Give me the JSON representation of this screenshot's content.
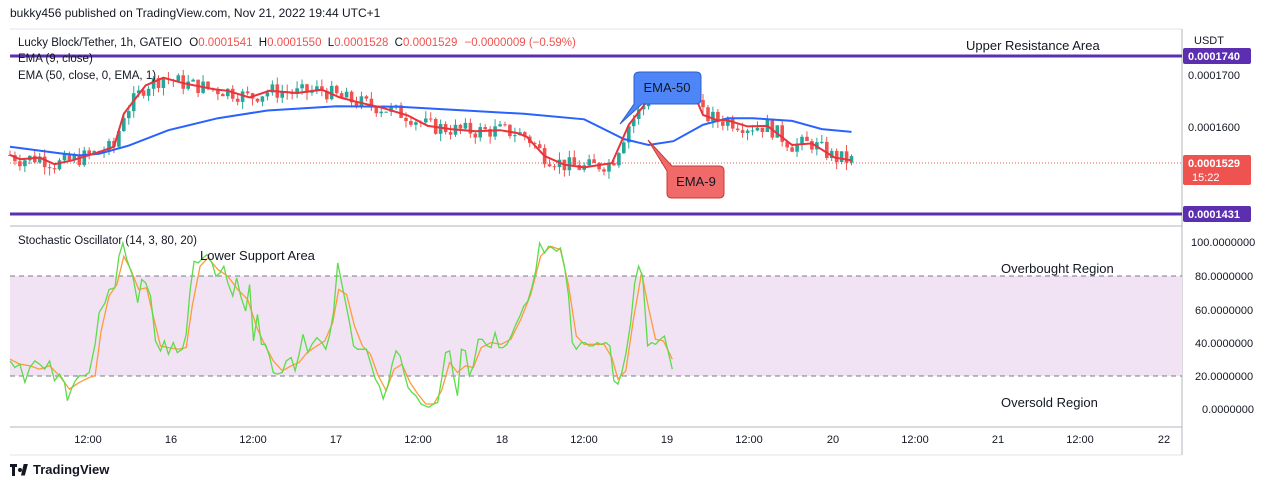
{
  "header": {
    "published": "bukky456 published on TradingView.com, Nov 21, 2022 19:44 UTC+1"
  },
  "footer": {
    "brand": "TradingView",
    "logo_icon": "tradingview-logo-icon"
  },
  "legend": {
    "symbol": "Lucky Block/Tether, 1h, GATEIO",
    "o_label": "O",
    "o": "0.0001541",
    "h_label": "H",
    "h": "0.0001550",
    "l_label": "L",
    "l": "0.0001528",
    "c_label": "C",
    "c": "0.0001529",
    "change": "−0.0000009 (−0.59%)",
    "ema9": "EMA (9, close)",
    "ema50": "EMA (50, close, 0, EMA, 1)"
  },
  "price_axis": {
    "currency": "USDT",
    "ticks": [
      "0.0001700",
      "0.0001600"
    ],
    "resistance_badge": "0.0001740",
    "support_badge": "0.0001431",
    "last_price": "0.0001529",
    "countdown": "15:22"
  },
  "annotations": {
    "upper": "Upper Resistance Area",
    "lower": "Lower Support Area",
    "overbought": "Overbought Region",
    "oversold": "Oversold Region",
    "ema50_callout": "EMA-50",
    "ema9_callout": "EMA-9"
  },
  "oscillator": {
    "title": "Stochastic Oscillator (14, 3, 80, 20)",
    "ticks": [
      "100.0000000",
      "80.0000000",
      "60.0000000",
      "40.0000000",
      "20.0000000",
      "0.0000000"
    ]
  },
  "time_axis": [
    "12:00",
    "16",
    "12:00",
    "17",
    "12:00",
    "18",
    "12:00",
    "19",
    "12:00",
    "20",
    "12:00",
    "21",
    "12:00",
    "22"
  ],
  "colors": {
    "up": "#26a69a",
    "down": "#ef5350",
    "ema9": "#e8323c",
    "ema50": "#2962ff",
    "level": "#5b2fb0",
    "k": "#5cdc4a",
    "d": "#ff9a3c",
    "band": "#f1e3f3"
  },
  "chart_data": {
    "type": "candlestick",
    "symbol": "LBLOCK/USDT",
    "timeframe": "1h",
    "price_range": [
      0.0001415,
      0.0001775
    ],
    "levels": {
      "resistance": 0.000174,
      "support": 0.0001431,
      "last": 0.0001529
    },
    "time_range": [
      "Nov 15 08:00",
      "Nov 21 19:00"
    ],
    "ema9_path": [
      [
        0,
        0.0001545
      ],
      [
        10,
        0.0001537
      ],
      [
        30,
        0.000154
      ],
      [
        45,
        0.0001528
      ],
      [
        63,
        0.0001535
      ],
      [
        90,
        0.000155
      ],
      [
        105,
        0.000156
      ],
      [
        115,
        0.000162
      ],
      [
        137,
        0.0001672
      ],
      [
        155,
        0.0001686
      ],
      [
        175,
        0.0001676
      ],
      [
        206,
        0.0001665
      ],
      [
        220,
        0.0001662
      ],
      [
        242,
        0.000165
      ],
      [
        262,
        0.0001662
      ],
      [
        290,
        0.0001658
      ],
      [
        315,
        0.0001664
      ],
      [
        333,
        0.000165
      ],
      [
        350,
        0.0001642
      ],
      [
        378,
        0.000163
      ],
      [
        402,
        0.0001617
      ],
      [
        422,
        0.0001598
      ],
      [
        445,
        0.0001592
      ],
      [
        470,
        0.0001588
      ],
      [
        495,
        0.000159
      ],
      [
        512,
        0.0001585
      ],
      [
        522,
        0.0001578
      ],
      [
        540,
        0.0001543
      ],
      [
        560,
        0.0001527
      ],
      [
        580,
        0.0001522
      ],
      [
        608,
        0.000153
      ],
      [
        625,
        0.00016
      ],
      [
        650,
        0.0001658
      ],
      [
        672,
        0.000168
      ],
      [
        680,
        0.0001678
      ],
      [
        690,
        0.000166
      ],
      [
        700,
        0.0001618
      ],
      [
        715,
        0.0001608
      ],
      [
        725,
        0.0001608
      ],
      [
        745,
        0.0001597
      ],
      [
        765,
        0.0001598
      ],
      [
        790,
        0.0001563
      ],
      [
        810,
        0.0001566
      ],
      [
        833,
        0.000154
      ],
      [
        850,
        0.0001535
      ]
    ],
    "ema50_path": [
      [
        0,
        0.000156
      ],
      [
        50,
        0.0001548
      ],
      [
        70,
        0.0001544
      ],
      [
        90,
        0.0001547
      ],
      [
        120,
        0.0001562
      ],
      [
        160,
        0.000159
      ],
      [
        210,
        0.0001612
      ],
      [
        260,
        0.0001626
      ],
      [
        330,
        0.0001634
      ],
      [
        393,
        0.0001633
      ],
      [
        460,
        0.0001626
      ],
      [
        519,
        0.000162
      ],
      [
        580,
        0.000161
      ],
      [
        620,
        0.0001574
      ],
      [
        645,
        0.0001563
      ],
      [
        670,
        0.000157
      ],
      [
        700,
        0.00016
      ],
      [
        725,
        0.0001612
      ],
      [
        750,
        0.0001612
      ],
      [
        790,
        0.0001607
      ],
      [
        820,
        0.0001592
      ],
      [
        850,
        0.0001587
      ]
    ],
    "stoch_k": [
      [
        0,
        29
      ],
      [
        5,
        25
      ],
      [
        10,
        27
      ],
      [
        15,
        16
      ],
      [
        20,
        25
      ],
      [
        25,
        29
      ],
      [
        30,
        27
      ],
      [
        35,
        24
      ],
      [
        40,
        29
      ],
      [
        45,
        17
      ],
      [
        50,
        21
      ],
      [
        55,
        16
      ],
      [
        58,
        5
      ],
      [
        62,
        12
      ],
      [
        66,
        17
      ],
      [
        70,
        20
      ],
      [
        75,
        20
      ],
      [
        80,
        22
      ],
      [
        86,
        39
      ],
      [
        90,
        58
      ],
      [
        96,
        64
      ],
      [
        100,
        72
      ],
      [
        106,
        73
      ],
      [
        110,
        92
      ],
      [
        114,
        100
      ],
      [
        118,
        90
      ],
      [
        124,
        80
      ],
      [
        129,
        64
      ],
      [
        133,
        78
      ],
      [
        137,
        76
      ],
      [
        142,
        68
      ],
      [
        147,
        41
      ],
      [
        152,
        35
      ],
      [
        156,
        41
      ],
      [
        160,
        33
      ],
      [
        165,
        40
      ],
      [
        169,
        34
      ],
      [
        174,
        36
      ],
      [
        178,
        45
      ],
      [
        182,
        72
      ],
      [
        186,
        89
      ],
      [
        190,
        88
      ],
      [
        195,
        91
      ],
      [
        199,
        93
      ],
      [
        204,
        88
      ],
      [
        208,
        80
      ],
      [
        212,
        82
      ],
      [
        216,
        86
      ],
      [
        220,
        76
      ],
      [
        225,
        68
      ],
      [
        229,
        79
      ],
      [
        233,
        68
      ],
      [
        238,
        59
      ],
      [
        242,
        75
      ],
      [
        246,
        41
      ],
      [
        250,
        57
      ],
      [
        254,
        39
      ],
      [
        258,
        39
      ],
      [
        262,
        32
      ],
      [
        266,
        22
      ],
      [
        270,
        21
      ],
      [
        275,
        22
      ],
      [
        279,
        29
      ],
      [
        284,
        31
      ],
      [
        288,
        23
      ],
      [
        292,
        33
      ],
      [
        296,
        45
      ],
      [
        301,
        34
      ],
      [
        305,
        39
      ],
      [
        310,
        43
      ],
      [
        315,
        40
      ],
      [
        319,
        36
      ],
      [
        323,
        45
      ],
      [
        327,
        59
      ],
      [
        331,
        88
      ],
      [
        335,
        76
      ],
      [
        339,
        64
      ],
      [
        343,
        52
      ],
      [
        347,
        38
      ],
      [
        351,
        36
      ],
      [
        355,
        36
      ],
      [
        360,
        36
      ],
      [
        364,
        28
      ],
      [
        369,
        18
      ],
      [
        373,
        14
      ],
      [
        377,
        6
      ],
      [
        382,
        15
      ],
      [
        386,
        27
      ],
      [
        390,
        35
      ],
      [
        394,
        32
      ],
      [
        398,
        22
      ],
      [
        402,
        13
      ],
      [
        406,
        10
      ],
      [
        410,
        8
      ],
      [
        415,
        3
      ],
      [
        419,
        2
      ],
      [
        423,
        1
      ],
      [
        428,
        3
      ],
      [
        432,
        4
      ],
      [
        436,
        18
      ],
      [
        440,
        34
      ],
      [
        444,
        35
      ],
      [
        448,
        20
      ],
      [
        452,
        8
      ],
      [
        456,
        36
      ],
      [
        460,
        35
      ],
      [
        464,
        20
      ],
      [
        468,
        26
      ],
      [
        473,
        42
      ],
      [
        477,
        42
      ],
      [
        482,
        38
      ],
      [
        486,
        37
      ],
      [
        490,
        46
      ],
      [
        494,
        37
      ],
      [
        498,
        37
      ],
      [
        502,
        39
      ],
      [
        507,
        45
      ],
      [
        511,
        51
      ],
      [
        515,
        56
      ],
      [
        519,
        62
      ],
      [
        523,
        65
      ],
      [
        527,
        73
      ],
      [
        531,
        83
      ],
      [
        535,
        100
      ],
      [
        540,
        94
      ],
      [
        544,
        98
      ],
      [
        548,
        97
      ],
      [
        552,
        95
      ],
      [
        556,
        97
      ],
      [
        560,
        86
      ],
      [
        564,
        69
      ],
      [
        568,
        40
      ],
      [
        572,
        36
      ],
      [
        577,
        40
      ],
      [
        581,
        40
      ],
      [
        585,
        38
      ],
      [
        589,
        38
      ],
      [
        593,
        40
      ],
      [
        597,
        39
      ],
      [
        602,
        40
      ],
      [
        606,
        38
      ],
      [
        610,
        17
      ],
      [
        614,
        15
      ],
      [
        618,
        22
      ],
      [
        622,
        33
      ],
      [
        627,
        52
      ],
      [
        631,
        76
      ],
      [
        635,
        86
      ],
      [
        639,
        80
      ],
      [
        644,
        38
      ],
      [
        648,
        40
      ],
      [
        652,
        39
      ],
      [
        657,
        42
      ],
      [
        661,
        44
      ],
      [
        665,
        34
      ],
      [
        669,
        24
      ]
    ],
    "stoch_d": [
      [
        0,
        30
      ],
      [
        10,
        27
      ],
      [
        20,
        26
      ],
      [
        30,
        24
      ],
      [
        40,
        26
      ],
      [
        50,
        20
      ],
      [
        60,
        12
      ],
      [
        70,
        16
      ],
      [
        80,
        19
      ],
      [
        86,
        20
      ],
      [
        92,
        47
      ],
      [
        100,
        68
      ],
      [
        108,
        75
      ],
      [
        115,
        92
      ],
      [
        122,
        84
      ],
      [
        130,
        72
      ],
      [
        138,
        73
      ],
      [
        145,
        55
      ],
      [
        152,
        38
      ],
      [
        160,
        37
      ],
      [
        170,
        36
      ],
      [
        178,
        37
      ],
      [
        184,
        62
      ],
      [
        192,
        86
      ],
      [
        200,
        91
      ],
      [
        210,
        84
      ],
      [
        220,
        80
      ],
      [
        230,
        72
      ],
      [
        240,
        66
      ],
      [
        250,
        48
      ],
      [
        258,
        38
      ],
      [
        266,
        29
      ],
      [
        275,
        23
      ],
      [
        284,
        26
      ],
      [
        292,
        28
      ],
      [
        300,
        34
      ],
      [
        310,
        38
      ],
      [
        318,
        41
      ],
      [
        326,
        52
      ],
      [
        332,
        72
      ],
      [
        340,
        69
      ],
      [
        348,
        50
      ],
      [
        356,
        38
      ],
      [
        364,
        33
      ],
      [
        372,
        20
      ],
      [
        380,
        11
      ],
      [
        388,
        24
      ],
      [
        396,
        27
      ],
      [
        404,
        16
      ],
      [
        412,
        9
      ],
      [
        420,
        3
      ],
      [
        428,
        3
      ],
      [
        436,
        11
      ],
      [
        444,
        28
      ],
      [
        452,
        22
      ],
      [
        460,
        26
      ],
      [
        468,
        25
      ],
      [
        476,
        37
      ],
      [
        486,
        40
      ],
      [
        496,
        39
      ],
      [
        506,
        42
      ],
      [
        516,
        54
      ],
      [
        526,
        69
      ],
      [
        536,
        92
      ],
      [
        546,
        98
      ],
      [
        556,
        96
      ],
      [
        564,
        75
      ],
      [
        572,
        44
      ],
      [
        580,
        39
      ],
      [
        590,
        39
      ],
      [
        600,
        39
      ],
      [
        608,
        31
      ],
      [
        614,
        18
      ],
      [
        622,
        23
      ],
      [
        630,
        55
      ],
      [
        638,
        82
      ],
      [
        645,
        61
      ],
      [
        652,
        42
      ],
      [
        660,
        41
      ],
      [
        669,
        30
      ]
    ]
  }
}
